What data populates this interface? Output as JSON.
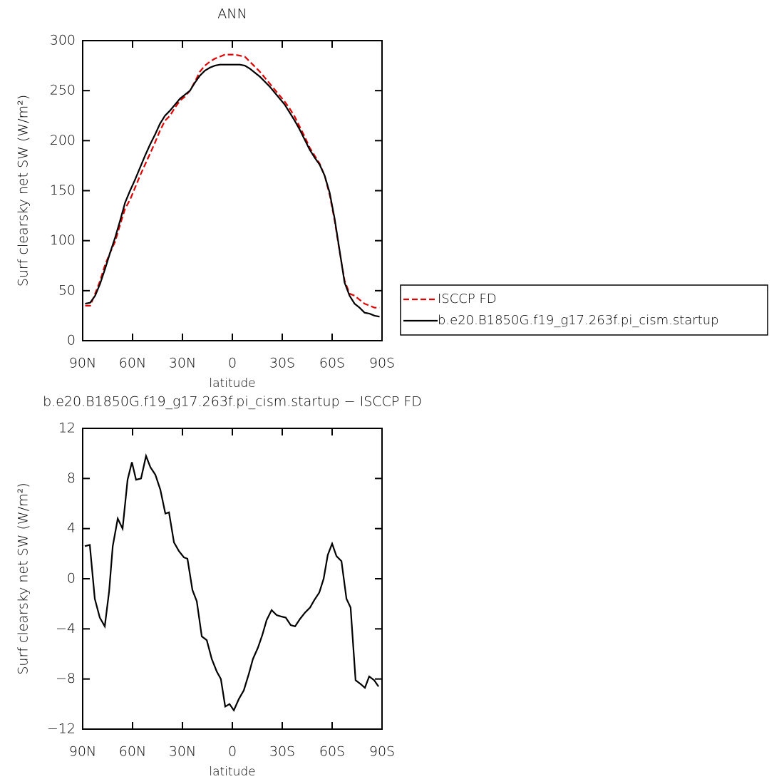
{
  "chart_data": [
    {
      "type": "line",
      "title": "ANN",
      "x_label": "latitude",
      "y_label": "Surf clearsky net SW (W/m²)",
      "xlim": [
        90,
        -90
      ],
      "xticks": [
        {
          "value": 90,
          "label": "90N"
        },
        {
          "value": 60,
          "label": "60N"
        },
        {
          "value": 30,
          "label": "30N"
        },
        0,
        {
          "value": -30,
          "label": "30S"
        },
        {
          "value": -60,
          "label": "60S"
        },
        {
          "value": -90,
          "label": "90S"
        }
      ],
      "ylim": [
        0,
        300
      ],
      "yticks": [
        0,
        50,
        100,
        150,
        200,
        250,
        300
      ],
      "legend": "right",
      "x": [
        88.5,
        85.5,
        82.5,
        79.5,
        76.5,
        73.5,
        70.5,
        67.5,
        64.5,
        61.5,
        58.5,
        55.5,
        52.5,
        49.5,
        46.5,
        43.5,
        40.5,
        37.5,
        34.5,
        31.5,
        28.5,
        25.5,
        22.5,
        19.5,
        16.5,
        13.5,
        10.5,
        7.5,
        4.5,
        1.5,
        -1.5,
        -4.5,
        -7.5,
        -10.5,
        -13.5,
        -16.5,
        -19.5,
        -22.5,
        -25.5,
        -28.5,
        -31.5,
        -34.5,
        -37.5,
        -40.5,
        -43.5,
        -46.5,
        -49.5,
        -52.5,
        -55.5,
        -58.5,
        -61.5,
        -64.5,
        -67.5,
        -70.5,
        -73.5,
        -76.5,
        -79.5,
        -82.5,
        -85.5,
        -88.5
      ],
      "series": [
        {
          "name": "ISCCP FD",
          "color": "#e00000",
          "dash": true,
          "values": [
            35,
            35,
            47,
            60,
            76,
            88,
            99,
            116,
            132,
            141,
            153,
            165,
            176,
            187,
            198,
            210,
            220,
            225,
            233,
            240,
            244,
            250,
            259,
            269,
            275,
            279,
            282,
            284,
            286,
            286,
            286,
            285,
            284,
            279,
            274,
            269,
            263,
            257,
            251,
            245,
            239,
            232,
            224,
            214,
            204,
            193,
            185,
            177,
            165,
            146,
            120,
            89,
            60,
            47,
            45,
            41,
            37,
            35,
            33,
            33
          ]
        },
        {
          "name": "b.e20.B1850G.f19_g17.263f.pi_cism.startup",
          "color": "#000000",
          "dash": false,
          "values": [
            37,
            38,
            45,
            57,
            72,
            88,
            103,
            120,
            138,
            150,
            161,
            173,
            185,
            196,
            206,
            217,
            225,
            230,
            236,
            242,
            246,
            250,
            258,
            265,
            270,
            273,
            275,
            276,
            276,
            276,
            276,
            276,
            275,
            272,
            268,
            264,
            259,
            254,
            248,
            242,
            236,
            228,
            220,
            211,
            201,
            191,
            183,
            176,
            165,
            148,
            122,
            90,
            58,
            45,
            37,
            33,
            28,
            27,
            25,
            24
          ]
        }
      ]
    },
    {
      "type": "line",
      "title": "b.e20.B1850G.f19_g17.263f.pi_cism.startup − ISCCP FD",
      "x_label": "latitude",
      "y_label": "Surf clearsky net SW (W/m²)",
      "xlim": [
        90,
        -90
      ],
      "xticks": [
        {
          "value": 90,
          "label": "90N"
        },
        {
          "value": 60,
          "label": "60N"
        },
        {
          "value": 30,
          "label": "30N"
        },
        0,
        {
          "value": -30,
          "label": "30S"
        },
        {
          "value": -60,
          "label": "60S"
        },
        {
          "value": -90,
          "label": "90S"
        }
      ],
      "ylim": [
        -12,
        12
      ],
      "yticks": [
        {
          "value": -12,
          "label": "−12"
        },
        {
          "value": -8,
          "label": "−8"
        },
        {
          "value": -4,
          "label": "−4"
        },
        0,
        4,
        8,
        12
      ],
      "color": "#000000",
      "x": [
        88.7,
        85.7,
        82.7,
        79.7,
        76.7,
        74.1,
        71.9,
        68.9,
        66,
        63,
        60.4,
        57.9,
        54.9,
        51.9,
        49.3,
        46.3,
        43.3,
        40.3,
        38.1,
        35.1,
        32.1,
        29.1,
        27,
        24,
        21.4,
        18.4,
        15.4,
        12.4,
        9.4,
        6.9,
        4.3,
        1.7,
        -0.9,
        -3.9,
        -6.9,
        -9.9,
        -12.4,
        -15.4,
        -18,
        -20.6,
        -23.6,
        -26.6,
        -29.1,
        -32.1,
        -35.1,
        -37.7,
        -40.7,
        -43.7,
        -46.7,
        -49.3,
        -52.3,
        -54.9,
        -57.4,
        -60,
        -62.6,
        -65.6,
        -68.6,
        -71.1,
        -74.1,
        -77.1,
        -79.7,
        -82.3,
        -85.3,
        -87.9
      ],
      "values": [
        2.6,
        2.7,
        -1.6,
        -3.1,
        -3.8,
        -1,
        2.6,
        4.8,
        4,
        7.9,
        9.3,
        7.9,
        8,
        9.8,
        8.9,
        8.3,
        7.1,
        5.2,
        5.3,
        2.9,
        2.2,
        1.7,
        1.6,
        -0.9,
        -1.8,
        -4.6,
        -4.9,
        -6.4,
        -7.4,
        -8,
        -10.2,
        -10,
        -10.5,
        -9.6,
        -8.9,
        -7.6,
        -6.4,
        -5.5,
        -4.5,
        -3.3,
        -2.5,
        -2.9,
        -3,
        -3.1,
        -3.7,
        -3.8,
        -3.2,
        -2.7,
        -2.3,
        -1.7,
        -1.1,
        0,
        1.9,
        2.8,
        1.8,
        1.4,
        -1.6,
        -2.3,
        -8.1,
        -8.4,
        -8.7,
        -7.8,
        -8.1,
        -8.6
      ]
    }
  ]
}
